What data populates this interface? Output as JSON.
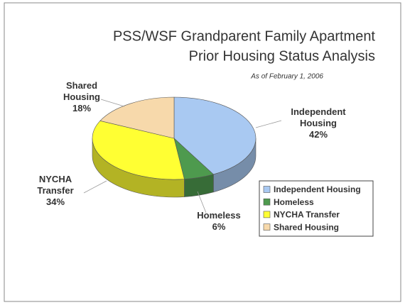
{
  "chart_data": {
    "type": "pie3d",
    "title": [
      "PSS/WSF Grandparent Family Apartment",
      "Prior Housing Status Analysis"
    ],
    "subtitle": "As of February 1, 2006",
    "categories": [
      "Independent Housing",
      "Homeless",
      "NYCHA Transfer",
      "Shared Housing"
    ],
    "values": [
      42,
      6,
      34,
      18
    ],
    "value_labels": [
      "42%",
      "6%",
      "34%",
      "18%"
    ],
    "colors": [
      "#a9c9f2",
      "#4e9a4e",
      "#ffff33",
      "#f7d9ab"
    ],
    "legend": "right"
  }
}
